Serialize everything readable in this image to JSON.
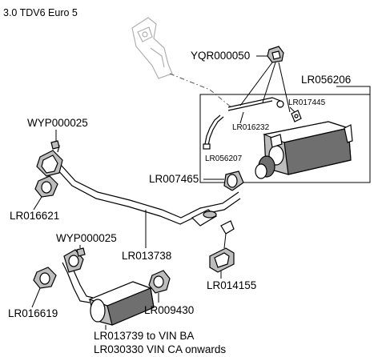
{
  "title": "3.0 TDV6 Euro 5",
  "callouts": {
    "yqr000050": "YQR000050",
    "lr056206": "LR056206",
    "lr017445": "LR017445",
    "lr016232": "LR016232",
    "lr056207": "LR056207",
    "wyp000025_top": "WYP000025",
    "lr016621": "LR016621",
    "lr007465": "LR007465",
    "lr013738": "LR013738",
    "wyp000025_bottom": "WYP000025",
    "lr014155": "LR014155",
    "lr016619": "LR016619",
    "lr009430": "LR009430",
    "lr013739": "LR013739 to VIN BA",
    "lr030330": "LR030330 VIN CA onwards"
  },
  "colors": {
    "line": "#000000",
    "part_fill_light": "#bdbdbd",
    "part_fill_dark": "#6f6f6f",
    "ghost_outline": "#b0b0b0"
  }
}
